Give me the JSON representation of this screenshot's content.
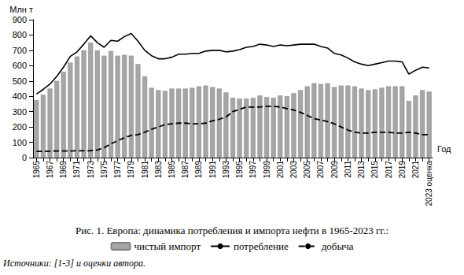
{
  "chart_data": {
    "type": "bar",
    "title": "Рис. 1. Европа: динамика потребления и импорта нефти в 1965-2023 гг.:",
    "annotations": [
      "Источники: [1-3] и оценки автора."
    ],
    "ylabel": "Млн т",
    "xlabel": "Год",
    "categories": [
      "1965",
      null,
      "1967",
      null,
      "1969",
      null,
      "1971",
      null,
      "1973",
      null,
      "1975",
      null,
      "1977",
      null,
      "1979",
      null,
      "1981",
      null,
      "1983",
      null,
      "1985",
      null,
      "1987",
      null,
      "1989",
      null,
      "1991",
      null,
      "1993",
      null,
      "1995",
      null,
      "1997",
      null,
      "1999",
      null,
      "2001",
      null,
      "2003",
      null,
      "2005",
      null,
      "2007",
      null,
      "2009",
      null,
      "2011",
      null,
      "2013",
      null,
      "2015",
      null,
      "2017",
      null,
      "2019",
      null,
      "2021",
      null,
      "2023 оценка"
    ],
    "series": [
      {
        "name": "чистый импорт",
        "type": "bar",
        "color": "#a6a6a6",
        "values": [
          375,
          410,
          450,
          500,
          560,
          620,
          660,
          700,
          750,
          700,
          665,
          695,
          665,
          670,
          665,
          610,
          530,
          455,
          440,
          435,
          450,
          450,
          450,
          455,
          465,
          470,
          460,
          450,
          425,
          390,
          385,
          385,
          390,
          405,
          395,
          390,
          405,
          400,
          420,
          440,
          465,
          485,
          480,
          485,
          460,
          470,
          470,
          465,
          450,
          440,
          445,
          455,
          465,
          465,
          465,
          370,
          405,
          440,
          430
        ]
      },
      {
        "name": "потребление",
        "type": "line",
        "color": "#000000",
        "line_style": "solid",
        "values": [
          415,
          445,
          480,
          530,
          590,
          660,
          690,
          740,
          795,
          750,
          720,
          765,
          760,
          790,
          810,
          760,
          700,
          665,
          645,
          645,
          655,
          675,
          675,
          680,
          680,
          695,
          700,
          700,
          690,
          695,
          705,
          720,
          725,
          740,
          735,
          725,
          735,
          730,
          735,
          740,
          740,
          740,
          725,
          715,
          680,
          670,
          650,
          625,
          610,
          600,
          610,
          620,
          630,
          630,
          625,
          545,
          570,
          590,
          585
        ]
      },
      {
        "name": "добыча",
        "type": "line",
        "color": "#000000",
        "line_style": "dashed",
        "values": [
          40,
          40,
          42,
          43,
          43,
          43,
          44,
          44,
          45,
          50,
          65,
          90,
          110,
          130,
          145,
          150,
          165,
          185,
          200,
          215,
          220,
          225,
          225,
          220,
          220,
          225,
          240,
          250,
          265,
          300,
          315,
          330,
          330,
          330,
          335,
          335,
          330,
          320,
          310,
          295,
          275,
          255,
          245,
          235,
          220,
          200,
          180,
          165,
          160,
          160,
          165,
          165,
          165,
          160,
          160,
          165,
          160,
          150,
          150
        ]
      }
    ],
    "ylim": [
      0,
      900
    ],
    "yticks": [
      0,
      100,
      200,
      300,
      400,
      500,
      600,
      700,
      800,
      900
    ],
    "grid": false,
    "legend": "bottom"
  }
}
